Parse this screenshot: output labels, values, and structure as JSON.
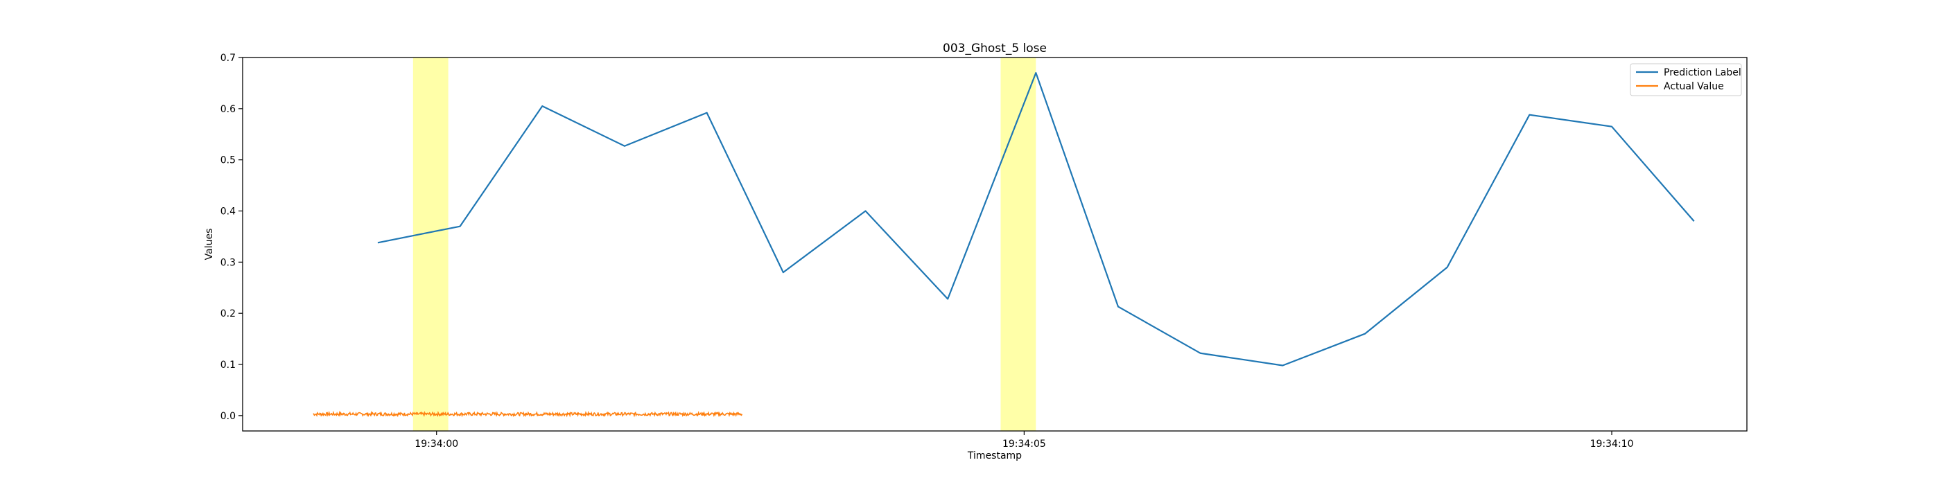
{
  "chart_data": {
    "type": "line",
    "title": "003_Ghost_5 lose",
    "xlabel": "Timestamp",
    "ylabel": "Values",
    "xlim": [
      "19:33:58.35",
      "19:34:11.15"
    ],
    "ylim": [
      -0.03,
      0.7
    ],
    "x_ticks": [
      {
        "t": "19:34:00",
        "label": "19:34:00"
      },
      {
        "t": "19:34:05",
        "label": "19:34:05"
      },
      {
        "t": "19:34:10",
        "label": "19:34:10"
      }
    ],
    "y_ticks": [
      {
        "v": 0.0,
        "label": "0.0"
      },
      {
        "v": 0.1,
        "label": "0.1"
      },
      {
        "v": 0.2,
        "label": "0.2"
      },
      {
        "v": 0.3,
        "label": "0.3"
      },
      {
        "v": 0.4,
        "label": "0.4"
      },
      {
        "v": 0.5,
        "label": "0.5"
      },
      {
        "v": 0.6,
        "label": "0.6"
      },
      {
        "v": 0.7,
        "label": "0.7"
      }
    ],
    "highlight_spans": [
      {
        "start": "19:33:59.80",
        "end": "19:34:00.10",
        "color": "#ffffa8"
      },
      {
        "start": "19:34:04.80",
        "end": "19:34:05.10",
        "color": "#ffffa8"
      }
    ],
    "legend_position": "top-right",
    "grid": false,
    "series": [
      {
        "name": "Prediction Label",
        "color": "#1f77b4",
        "points": [
          [
            "19:33:59.50",
            0.338
          ],
          [
            "19:34:00.20",
            0.37
          ],
          [
            "19:34:00.90",
            0.605
          ],
          [
            "19:34:01.60",
            0.527
          ],
          [
            "19:34:02.30",
            0.592
          ],
          [
            "19:34:02.95",
            0.28
          ],
          [
            "19:34:03.65",
            0.4
          ],
          [
            "19:34:04.35",
            0.228
          ],
          [
            "19:34:05.10",
            0.67
          ],
          [
            "19:34:05.80",
            0.213
          ],
          [
            "19:34:06.50",
            0.122
          ],
          [
            "19:34:07.20",
            0.098
          ],
          [
            "19:34:07.90",
            0.16
          ],
          [
            "19:34:08.60",
            0.29
          ],
          [
            "19:34:09.30",
            0.588
          ],
          [
            "19:34:10.00",
            0.565
          ],
          [
            "19:34:10.70",
            0.38
          ]
        ]
      },
      {
        "name": "Actual Value",
        "color": "#ff7f0e",
        "points": [
          [
            "19:33:58.95",
            0.003
          ],
          [
            "19:34:02.60",
            0.003
          ]
        ]
      }
    ]
  }
}
